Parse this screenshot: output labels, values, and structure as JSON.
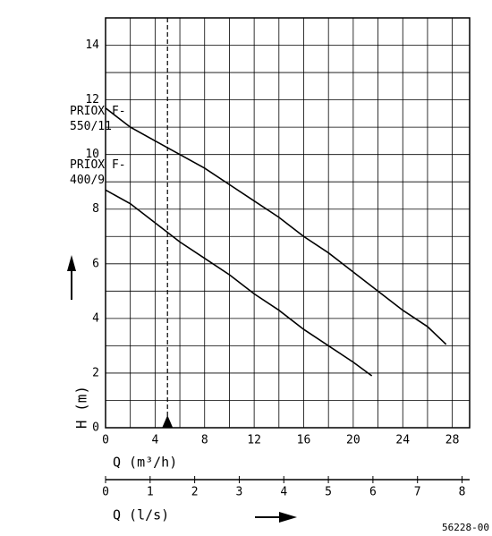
{
  "chart_data": {
    "type": "line",
    "series": [
      {
        "name": "PRIOX F-550/11",
        "color": "#000000",
        "x": [
          0,
          2,
          4,
          6,
          8,
          10,
          12,
          14,
          16,
          18,
          20,
          22,
          24,
          26,
          27.5
        ],
        "values": [
          11.7,
          11.0,
          10.5,
          10.0,
          9.5,
          8.9,
          8.3,
          7.7,
          7.0,
          6.4,
          5.7,
          5.0,
          4.3,
          3.7,
          3.05
        ]
      },
      {
        "name": "PRIOX F-400/9",
        "color": "#000000",
        "x": [
          0,
          2,
          4,
          6,
          8,
          10,
          12,
          14,
          16,
          18,
          20,
          21.5
        ],
        "values": [
          8.7,
          8.2,
          7.5,
          6.8,
          6.2,
          5.6,
          4.9,
          4.3,
          3.6,
          3.0,
          2.4,
          1.9
        ]
      }
    ],
    "y_label": "H (m)",
    "x_label": "Q (m³/h)",
    "x2_label": "Q (l/s)",
    "xlim": [
      0,
      29.4
    ],
    "xticks": [
      0,
      4,
      8,
      12,
      16,
      20,
      24,
      28
    ],
    "x_minor_ticks": [
      2,
      6,
      10,
      14,
      18,
      22,
      26
    ],
    "ylim": [
      0,
      15
    ],
    "yticks": [
      0,
      2,
      4,
      6,
      8,
      10,
      12,
      14
    ],
    "y_minor_ticks": [
      1,
      3,
      5,
      7,
      9,
      11,
      13
    ],
    "x2lim": [
      0,
      8.17
    ],
    "x2ticks": [
      0,
      1,
      2,
      3,
      4,
      5,
      6,
      7,
      8
    ],
    "reference_q": 5,
    "grid": true,
    "code": "56228-00"
  }
}
